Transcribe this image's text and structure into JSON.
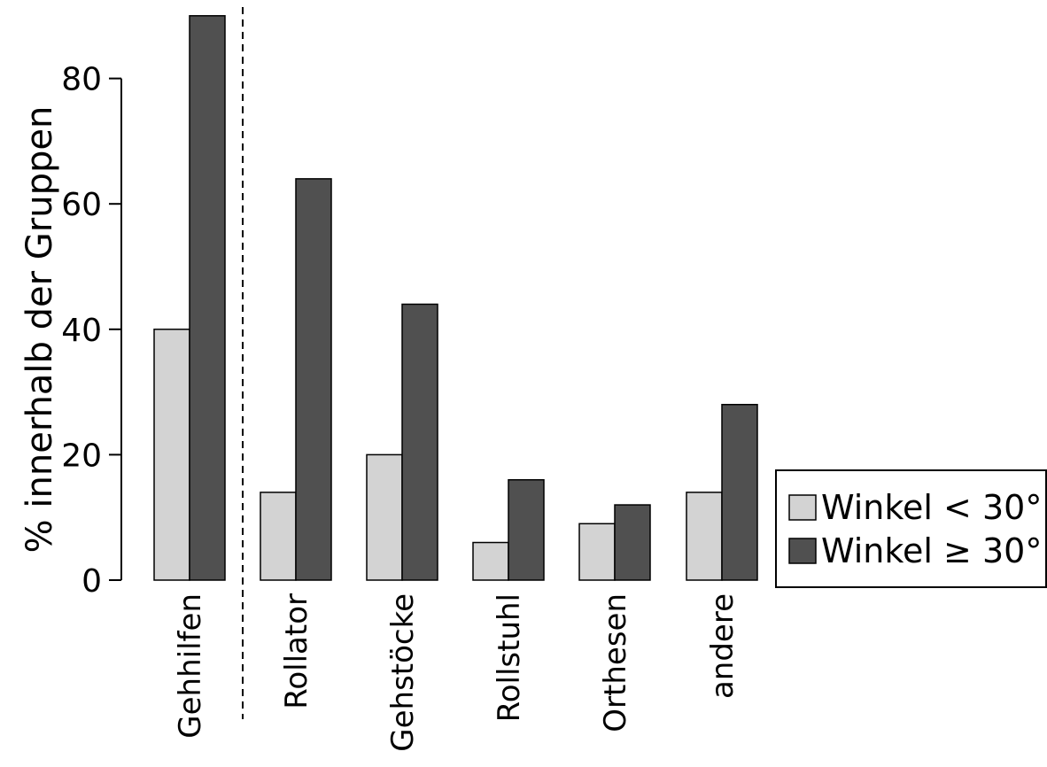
{
  "chart_data": {
    "type": "bar",
    "title": "",
    "xlabel": "",
    "ylabel": "% innerhalb der Gruppen",
    "categories": [
      "Gehhilfen",
      "Rollator",
      "Gehstöcke",
      "Rollstuhl",
      "Orthesen",
      "andere"
    ],
    "series": [
      {
        "name": "Winkel < 30°",
        "color": "#d3d3d3",
        "values": [
          40,
          14,
          20,
          6,
          9,
          14
        ]
      },
      {
        "name": "Winkel ≥ 30°",
        "color": "#505050",
        "values": [
          90,
          64,
          44,
          16,
          12,
          28
        ]
      }
    ],
    "yticks": [
      "0",
      "20",
      "40",
      "60",
      "80"
    ],
    "ylim": [
      0,
      90
    ],
    "grid": false,
    "legend_position": "bottom-right",
    "separator_after_category": "Gehhilfen"
  }
}
